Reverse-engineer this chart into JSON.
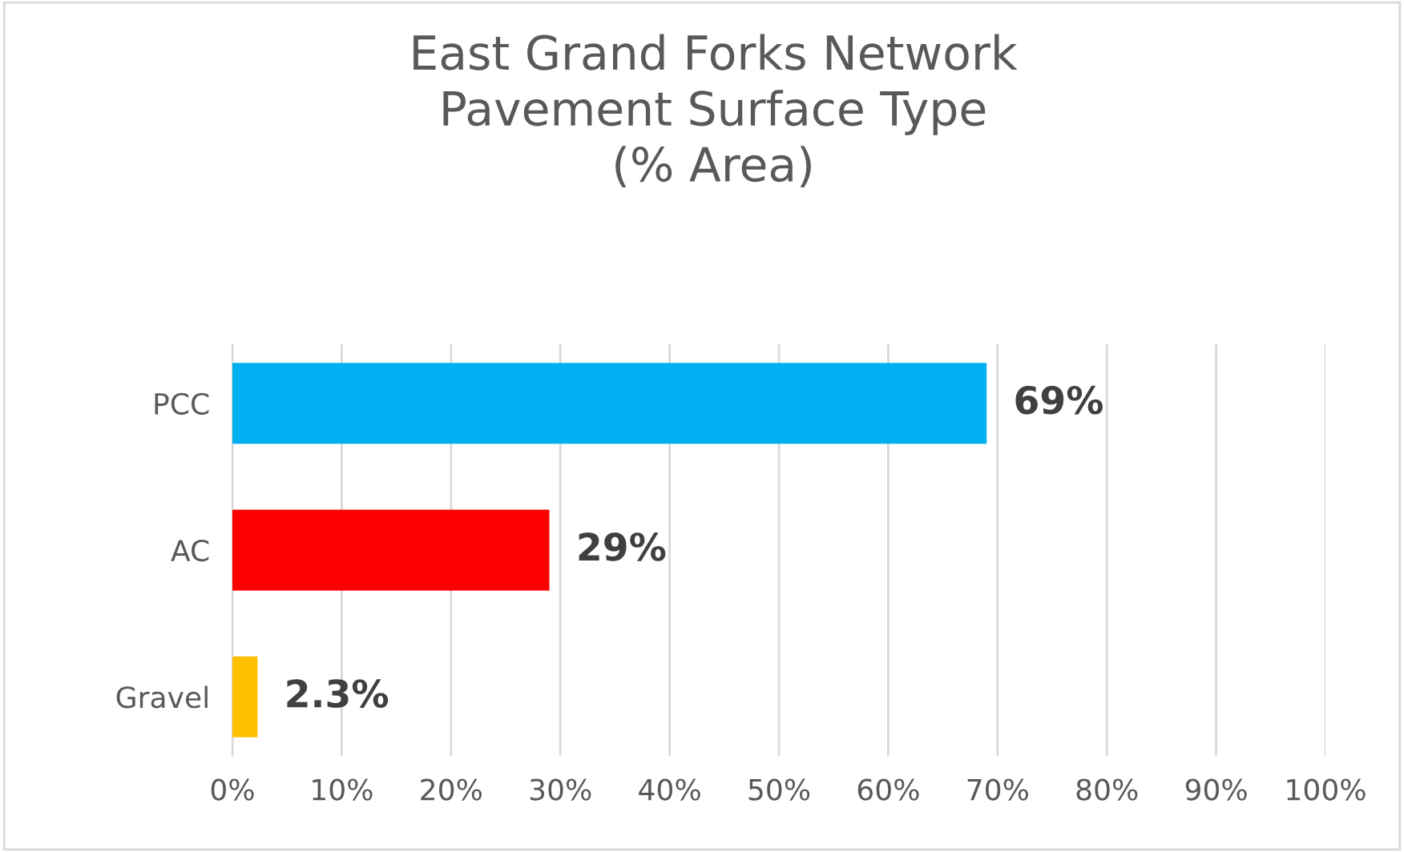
{
  "chart_data": {
    "type": "bar",
    "orientation": "horizontal",
    "title": "East Grand Forks Network\nPavement Surface Type\n(% Area)",
    "categories": [
      "PCC",
      "AC",
      "Gravel"
    ],
    "values": [
      69,
      29,
      2.3
    ],
    "colors": [
      "#00b0f0",
      "#ff0000",
      "#ffc000"
    ],
    "value_labels": [
      "69%",
      "29%",
      "2.3%"
    ],
    "xlim": [
      0,
      100
    ],
    "xticks": [
      {
        "value": 0,
        "label": "0%"
      },
      {
        "value": 10,
        "label": "10%"
      },
      {
        "value": 20,
        "label": "20%"
      },
      {
        "value": 30,
        "label": "30%"
      },
      {
        "value": 40,
        "label": "40%"
      },
      {
        "value": 50,
        "label": "50%"
      },
      {
        "value": 60,
        "label": "60%"
      },
      {
        "value": 70,
        "label": "70%"
      },
      {
        "value": 80,
        "label": "80%"
      },
      {
        "value": 90,
        "label": "90%"
      },
      {
        "value": 100,
        "label": "100%"
      }
    ],
    "grid": "x"
  }
}
